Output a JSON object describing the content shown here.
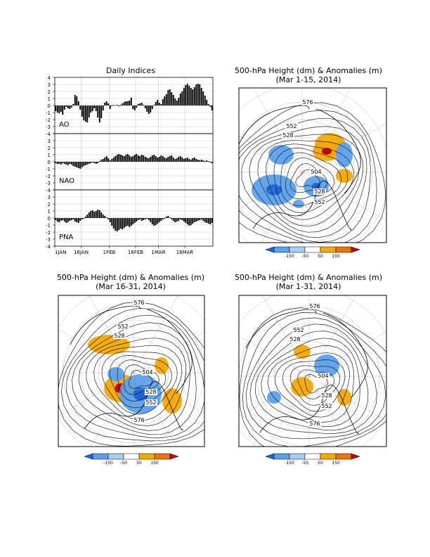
{
  "chart_data": [
    {
      "type": "bar",
      "title": "Daily Indices",
      "x_tick_labels": [
        "1JAN",
        "16JAN",
        "1FEB",
        "16FEB",
        "1MAR",
        "16MAR"
      ],
      "x_tick_days": [
        0,
        15,
        31,
        46,
        59,
        74
      ],
      "x_range_days": [
        0,
        89
      ],
      "y_tick_labels": [
        "4",
        "3",
        "2",
        "1",
        "0",
        "-1",
        "-2",
        "-3",
        "-4"
      ],
      "ylim": [
        -4,
        4
      ],
      "grid": true,
      "panels": [
        {
          "name": "AO",
          "values": [
            -0.8,
            -1.0,
            -1.1,
            -0.9,
            -1.3,
            -0.6,
            -0.2,
            -0.4,
            -0.5,
            -0.3,
            0.2,
            1.5,
            1.3,
            0.6,
            -0.6,
            -1.6,
            -2.1,
            -2.3,
            -2.4,
            -1.7,
            -1.0,
            -0.8,
            -0.4,
            -0.8,
            -1.7,
            -2.4,
            -1.8,
            -0.7,
            0.4,
            0.6,
            0.3,
            -0.5,
            -0.1,
            0.1,
            0.0,
            0.1,
            -0.1,
            0.1,
            0.3,
            0.5,
            0.6,
            0.6,
            0.7,
            1.1,
            -0.5,
            -0.7,
            -0.3,
            0.2,
            0.3,
            0.4,
            0.1,
            -0.4,
            -0.9,
            -1.2,
            -1.0,
            -0.5,
            0.1,
            0.5,
            0.8,
            0.4,
            0.2,
            0.9,
            1.3,
            1.6,
            2.2,
            2.3,
            1.9,
            1.5,
            1.0,
            0.7,
            1.1,
            1.7,
            2.0,
            2.5,
            2.9,
            3.1,
            2.8,
            2.5,
            2.3,
            2.6,
            3.0,
            3.1,
            3.0,
            2.5,
            2.0,
            1.4,
            0.8,
            0.2,
            -0.2,
            -0.7
          ]
        },
        {
          "name": "NAO",
          "values": [
            -0.2,
            -0.3,
            -0.3,
            -0.4,
            -0.2,
            -0.3,
            -0.4,
            -0.5,
            -0.3,
            -0.4,
            -0.6,
            -0.7,
            -0.8,
            -0.9,
            -1.0,
            -0.8,
            -0.6,
            -0.5,
            -0.4,
            -0.3,
            -0.2,
            -0.1,
            -0.2,
            -0.3,
            -0.2,
            0.1,
            0.3,
            0.4,
            0.6,
            0.8,
            0.5,
            0.2,
            0.4,
            0.6,
            0.8,
            1.0,
            1.1,
            1.0,
            0.9,
            0.8,
            1.0,
            1.1,
            0.9,
            0.7,
            0.8,
            1.0,
            1.1,
            0.9,
            0.8,
            1.0,
            0.9,
            0.7,
            0.6,
            0.5,
            0.7,
            0.9,
            1.0,
            0.8,
            0.6,
            0.7,
            0.9,
            0.8,
            0.6,
            0.5,
            0.7,
            0.8,
            0.9,
            0.6,
            0.4,
            0.5,
            0.7,
            0.8,
            0.6,
            0.4,
            0.5,
            0.6,
            0.4,
            0.3,
            0.5,
            0.6,
            0.4,
            0.3,
            0.2,
            0.3,
            0.2,
            0.1,
            0.2,
            0.1,
            -0.1,
            -0.2
          ]
        },
        {
          "name": "PNA",
          "values": [
            -0.3,
            -0.5,
            -0.6,
            -0.4,
            -0.3,
            -0.5,
            -0.7,
            -0.6,
            -0.4,
            -0.3,
            -0.2,
            -0.5,
            -0.6,
            -0.7,
            -0.4,
            -0.2,
            -0.1,
            0.2,
            0.5,
            0.8,
            1.0,
            1.1,
            0.9,
            1.0,
            1.2,
            1.1,
            0.8,
            0.5,
            0.3,
            0.1,
            -0.2,
            -0.6,
            -1.1,
            -1.5,
            -1.8,
            -1.9,
            -1.7,
            -1.5,
            -1.6,
            -1.4,
            -1.2,
            -1.1,
            -1.3,
            -1.1,
            -0.9,
            -0.7,
            -0.5,
            -0.3,
            -0.2,
            -0.4,
            -0.3,
            -0.2,
            -0.1,
            -0.3,
            -0.6,
            -0.9,
            -1.1,
            -1.0,
            -0.8,
            -0.6,
            -0.4,
            -0.2,
            -0.1,
            0.2,
            0.3,
            0.1,
            -0.2,
            -0.4,
            -0.6,
            -0.5,
            -0.4,
            -0.2,
            -0.3,
            -0.5,
            -0.7,
            -0.9,
            -1.1,
            -1.0,
            -0.8,
            -0.6,
            -0.5,
            -0.4,
            -0.3,
            -0.2,
            -0.4,
            -0.6,
            -0.7,
            -0.8,
            -0.9,
            -0.7
          ]
        }
      ]
    },
    {
      "type": "map",
      "title": "500-hPa Height (dm) & Anomalies (m)",
      "subtitle": "(Mar 1-15, 2014)",
      "contour_labels": [
        "576",
        "552",
        "528",
        "504",
        "528",
        "552"
      ],
      "anomaly_centers": [
        {
          "sign": "neg",
          "strength": 1
        },
        {
          "sign": "pos",
          "strength": 1
        },
        {
          "sign": "neg",
          "strength": 2
        },
        {
          "sign": "pos",
          "strength": 2
        },
        {
          "sign": "neg",
          "strength": 1
        },
        {
          "sign": "neg",
          "strength": 2
        },
        {
          "sign": "pos",
          "strength": 1
        },
        {
          "sign": "neg",
          "strength": 1
        }
      ],
      "colorbar": {
        "ticks": [
          "-150",
          "-50",
          "50",
          "150"
        ],
        "colors": [
          "#1e66dd",
          "#5aa0ee",
          "#a6cdf5",
          "#ffffff",
          "#f8a800",
          "#f07000",
          "#c00000"
        ]
      }
    },
    {
      "type": "map",
      "title": "500-hPa Height (dm) & Anomalies (m)",
      "subtitle": "(Mar 16-31, 2014)",
      "contour_labels": [
        "576",
        "552",
        "528",
        "504",
        "528",
        "552",
        "576"
      ],
      "anomaly_centers": [
        {
          "sign": "pos",
          "strength": 1
        },
        {
          "sign": "pos",
          "strength": 2
        },
        {
          "sign": "neg",
          "strength": 1
        },
        {
          "sign": "neg",
          "strength": 2
        },
        {
          "sign": "pos",
          "strength": 1
        },
        {
          "sign": "pos",
          "strength": 1
        }
      ],
      "colorbar": {
        "ticks": [
          "-150",
          "-50",
          "50",
          "150"
        ],
        "colors": [
          "#1e66dd",
          "#5aa0ee",
          "#a6cdf5",
          "#ffffff",
          "#f8a800",
          "#f07000",
          "#c00000"
        ]
      }
    },
    {
      "type": "map",
      "title": "500-hPa Height (dm) & Anomalies (m)",
      "subtitle": "(Mar 1-31, 2014)",
      "contour_labels": [
        "576",
        "552",
        "528",
        "504",
        "528",
        "552",
        "576"
      ],
      "anomaly_centers": [
        {
          "sign": "pos",
          "strength": 1
        },
        {
          "sign": "neg",
          "strength": 1
        },
        {
          "sign": "pos",
          "strength": 1
        },
        {
          "sign": "neg",
          "strength": 1
        },
        {
          "sign": "pos",
          "strength": 1
        }
      ],
      "colorbar": {
        "ticks": [
          "-150",
          "-50",
          "50",
          "150"
        ],
        "colors": [
          "#1e66dd",
          "#5aa0ee",
          "#a6cdf5",
          "#ffffff",
          "#f8a800",
          "#f07000",
          "#c00000"
        ]
      }
    }
  ]
}
